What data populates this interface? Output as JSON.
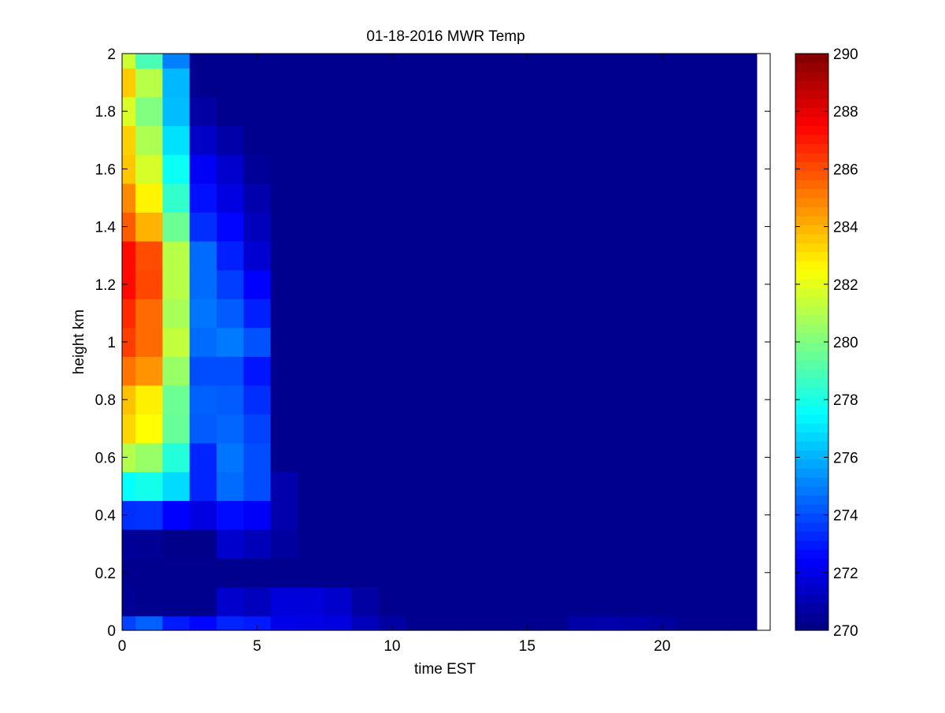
{
  "chart_data": {
    "type": "heatmap",
    "title": "01-18-2016 MWR Temp",
    "xlabel": "time EST",
    "ylabel": "height km",
    "xlim": [
      0,
      24
    ],
    "ylim": [
      0,
      2
    ],
    "x_ticks": [
      "0",
      "5",
      "10",
      "15",
      "20"
    ],
    "y_ticks": [
      "0",
      "0.2",
      "0.4",
      "0.6",
      "0.8",
      "1",
      "1.2",
      "1.4",
      "1.6",
      "1.8",
      "2"
    ],
    "colorbar": {
      "range": [
        270,
        290
      ],
      "ticks": [
        "270",
        "272",
        "274",
        "276",
        "278",
        "280",
        "282",
        "284",
        "286",
        "288",
        "290"
      ],
      "colormap": "jet"
    },
    "x_bin_start": 0,
    "x_bin_width": 1,
    "y_edges": [
      0,
      0.05,
      0.15,
      0.25,
      0.35,
      0.45,
      0.55,
      0.65,
      0.75,
      0.85,
      0.95,
      1.05,
      1.15,
      1.25,
      1.35,
      1.45,
      1.55,
      1.65,
      1.75,
      1.85,
      1.95,
      2.0
    ],
    "background_value": 270.3,
    "columns": [
      [
        273.8,
        270.4,
        270.3,
        270.5,
        273.4,
        277.6,
        281.0,
        283.3,
        283.7,
        285.2,
        286.3,
        286.7,
        287.3,
        287.3,
        285.7,
        284.8,
        283.6,
        283.4,
        281.8,
        283.5,
        281.5
      ],
      [
        274.4,
        270.3,
        270.3,
        270.4,
        273.5,
        277.9,
        280.5,
        282.5,
        282.8,
        284.6,
        285.4,
        285.4,
        286.1,
        286.0,
        284.0,
        282.7,
        281.7,
        280.9,
        280.0,
        281.1,
        278.9
      ],
      [
        273.0,
        270.3,
        270.3,
        270.2,
        272.5,
        276.8,
        278.2,
        279.5,
        279.6,
        280.5,
        281.3,
        280.8,
        281.1,
        281.1,
        279.6,
        278.5,
        277.7,
        276.9,
        276.2,
        276.1,
        275.0
      ],
      [
        272.6,
        270.3,
        270.3,
        270.2,
        271.9,
        273.2,
        273.2,
        274.3,
        274.4,
        274.0,
        274.6,
        274.8,
        274.6,
        274.6,
        273.4,
        272.8,
        272.3,
        271.4,
        270.7,
        270.3,
        270.3
      ],
      [
        273.2,
        271.5,
        270.3,
        271.5,
        272.7,
        274.6,
        274.8,
        274.5,
        274.3,
        274.0,
        274.9,
        274.3,
        273.7,
        273.1,
        272.6,
        271.9,
        271.5,
        270.8,
        270.3,
        270.3,
        270.3
      ],
      [
        273.0,
        271.2,
        270.3,
        271.1,
        272.4,
        274.0,
        274.0,
        273.8,
        273.4,
        272.9,
        274.1,
        273.1,
        272.5,
        271.6,
        271.2,
        270.9,
        270.5,
        270.3,
        270.3,
        270.3,
        270.3
      ],
      [
        272.1,
        271.8,
        270.3,
        270.6,
        270.9,
        270.9,
        270.3,
        270.3,
        270.3,
        270.3,
        270.3,
        270.3,
        270.3,
        270.3,
        270.3,
        270.3,
        270.3,
        270.3,
        270.3,
        270.3,
        270.3
      ],
      [
        272.0,
        271.8,
        270.3,
        270.3,
        270.3,
        270.3,
        270.3,
        270.3,
        270.3,
        270.3,
        270.3,
        270.3,
        270.3,
        270.3,
        270.3,
        270.3,
        270.3,
        270.3,
        270.3,
        270.3,
        270.3
      ],
      [
        271.9,
        271.5,
        270.3,
        270.3,
        270.3,
        270.3,
        270.3,
        270.3,
        270.3,
        270.3,
        270.3,
        270.3,
        270.3,
        270.3,
        270.3,
        270.3,
        270.3,
        270.3,
        270.3,
        270.3,
        270.3
      ],
      [
        271.2,
        270.7,
        270.3,
        270.3,
        270.3,
        270.3,
        270.3,
        270.3,
        270.3,
        270.3,
        270.3,
        270.3,
        270.3,
        270.3,
        270.3,
        270.3,
        270.3,
        270.3,
        270.3,
        270.3,
        270.3
      ],
      [
        270.7,
        270.3,
        270.3,
        270.3,
        270.3,
        270.3,
        270.3,
        270.3,
        270.3,
        270.3,
        270.3,
        270.3,
        270.3,
        270.3,
        270.3,
        270.3,
        270.3,
        270.3,
        270.3,
        270.3,
        270.3
      ],
      [
        270.3,
        270.3,
        270.3,
        270.3,
        270.3,
        270.3,
        270.3,
        270.3,
        270.3,
        270.3,
        270.3,
        270.3,
        270.3,
        270.3,
        270.3,
        270.3,
        270.3,
        270.3,
        270.3,
        270.3,
        270.3
      ],
      [
        270.3,
        270.3,
        270.3,
        270.3,
        270.3,
        270.3,
        270.3,
        270.3,
        270.3,
        270.3,
        270.3,
        270.3,
        270.3,
        270.3,
        270.3,
        270.3,
        270.3,
        270.3,
        270.3,
        270.3,
        270.3
      ],
      [
        270.3,
        270.3,
        270.3,
        270.3,
        270.3,
        270.3,
        270.3,
        270.3,
        270.3,
        270.3,
        270.3,
        270.3,
        270.3,
        270.3,
        270.3,
        270.3,
        270.3,
        270.3,
        270.3,
        270.3,
        270.3
      ],
      [
        270.3,
        270.3,
        270.3,
        270.3,
        270.3,
        270.3,
        270.3,
        270.3,
        270.3,
        270.3,
        270.3,
        270.3,
        270.3,
        270.3,
        270.3,
        270.3,
        270.3,
        270.3,
        270.3,
        270.3,
        270.3
      ],
      [
        270.3,
        270.3,
        270.3,
        270.3,
        270.3,
        270.3,
        270.3,
        270.3,
        270.3,
        270.3,
        270.3,
        270.3,
        270.3,
        270.3,
        270.3,
        270.3,
        270.3,
        270.3,
        270.3,
        270.3,
        270.3
      ],
      [
        270.3,
        270.3,
        270.3,
        270.3,
        270.3,
        270.3,
        270.3,
        270.3,
        270.3,
        270.3,
        270.3,
        270.3,
        270.3,
        270.3,
        270.3,
        270.3,
        270.3,
        270.3,
        270.3,
        270.3,
        270.3
      ],
      [
        270.8,
        270.3,
        270.3,
        270.3,
        270.3,
        270.3,
        270.3,
        270.3,
        270.3,
        270.3,
        270.3,
        270.3,
        270.3,
        270.3,
        270.3,
        270.3,
        270.3,
        270.3,
        270.3,
        270.3,
        270.3
      ],
      [
        270.9,
        270.3,
        270.3,
        270.3,
        270.3,
        270.3,
        270.3,
        270.3,
        270.3,
        270.3,
        270.3,
        270.3,
        270.3,
        270.3,
        270.3,
        270.3,
        270.3,
        270.3,
        270.3,
        270.3,
        270.3
      ],
      [
        270.8,
        270.3,
        270.3,
        270.3,
        270.3,
        270.3,
        270.3,
        270.3,
        270.3,
        270.3,
        270.3,
        270.3,
        270.3,
        270.3,
        270.3,
        270.3,
        270.3,
        270.3,
        270.3,
        270.3,
        270.3
      ],
      [
        270.6,
        270.3,
        270.3,
        270.3,
        270.3,
        270.3,
        270.3,
        270.3,
        270.3,
        270.3,
        270.3,
        270.3,
        270.3,
        270.3,
        270.3,
        270.3,
        270.3,
        270.3,
        270.3,
        270.3,
        270.3
      ],
      [
        270.3,
        270.3,
        270.3,
        270.3,
        270.3,
        270.3,
        270.3,
        270.3,
        270.3,
        270.3,
        270.3,
        270.3,
        270.3,
        270.3,
        270.3,
        270.3,
        270.3,
        270.3,
        270.3,
        270.3,
        270.3
      ],
      [
        270.3,
        270.3,
        270.3,
        270.3,
        270.3,
        270.3,
        270.3,
        270.3,
        270.3,
        270.3,
        270.3,
        270.3,
        270.3,
        270.3,
        270.3,
        270.3,
        270.3,
        270.3,
        270.3,
        270.3,
        270.3
      ],
      [
        270.3,
        270.3,
        270.3,
        270.3,
        270.3,
        270.3,
        270.3,
        270.3,
        270.3,
        270.3,
        270.3,
        270.3,
        270.3,
        270.3,
        270.3,
        270.3,
        270.3,
        270.3,
        270.3,
        270.3,
        270.3
      ]
    ]
  }
}
